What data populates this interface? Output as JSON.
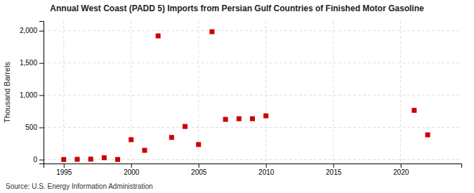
{
  "chart_data": {
    "type": "scatter",
    "title": "Annual West Coast (PADD 5) Imports from Persian Gulf Countries of Finished Motor Gasoline",
    "ylabel": "Thousand Barrels",
    "annotation": "Source: U.S. Energy Information Administration",
    "x": [
      1995,
      1996,
      1997,
      1998,
      1999,
      2000,
      2001,
      2002,
      2003,
      2004,
      2005,
      2006,
      2007,
      2008,
      2009,
      2010,
      2021,
      2022
    ],
    "values": [
      2,
      5,
      8,
      30,
      3,
      310,
      145,
      1920,
      345,
      515,
      235,
      1985,
      625,
      635,
      635,
      680,
      765,
      385
    ],
    "color": "#cc0000",
    "marker": "square",
    "xlim": [
      1993.5,
      2024.5
    ],
    "ylim": [
      -60,
      2150
    ],
    "xticks": [
      1995,
      2000,
      2005,
      2010,
      2015,
      2020
    ],
    "yticks": [
      0,
      500,
      {
        "value": 1000,
        "label": "1,000"
      },
      {
        "value": 1500,
        "label": "1,500"
      },
      {
        "value": 2000,
        "label": "2,000"
      }
    ],
    "grid": true
  }
}
